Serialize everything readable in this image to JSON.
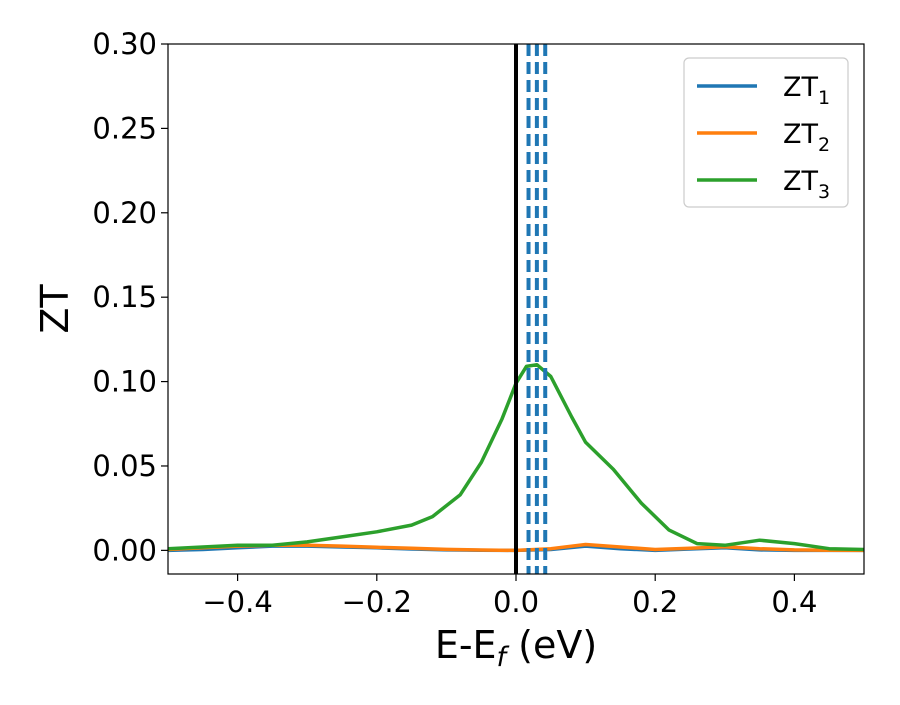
{
  "chart_data": {
    "type": "line",
    "xlabel": "E-E",
    "xlabel_sub": "f",
    "xlabel_unit": " (eV)",
    "ylabel": "ZT",
    "xlim": [
      -0.5,
      0.5
    ],
    "ylim": [
      -0.014,
      0.3
    ],
    "xticks": [
      -0.4,
      -0.2,
      0.0,
      0.2,
      0.4
    ],
    "xtick_labels": [
      "−0.4",
      "−0.2",
      "0.0",
      "0.2",
      "0.4"
    ],
    "yticks": [
      0.0,
      0.05,
      0.1,
      0.15,
      0.2,
      0.25,
      0.3
    ],
    "ytick_labels": [
      "0.00",
      "0.05",
      "0.10",
      "0.15",
      "0.20",
      "0.25",
      "0.30"
    ],
    "grid": false,
    "legend_position": "top-right",
    "series": [
      {
        "name": "ZT",
        "name_sub": "1",
        "color": "#1f77b4",
        "x": [
          -0.5,
          -0.45,
          -0.4,
          -0.35,
          -0.3,
          -0.25,
          -0.2,
          -0.15,
          -0.1,
          -0.05,
          0.0,
          0.05,
          0.1,
          0.15,
          0.2,
          0.25,
          0.3,
          0.35,
          0.4,
          0.45,
          0.5
        ],
        "y": [
          0.0,
          0.0005,
          0.0015,
          0.0025,
          0.0025,
          0.002,
          0.0015,
          0.0008,
          0.0003,
          0.0001,
          0.0,
          0.0005,
          0.0025,
          0.001,
          0.0,
          0.0008,
          0.0015,
          0.0003,
          0.0,
          0.0,
          0.0
        ]
      },
      {
        "name": "ZT",
        "name_sub": "2",
        "color": "#ff7f0e",
        "x": [
          -0.5,
          -0.45,
          -0.4,
          -0.35,
          -0.3,
          -0.25,
          -0.2,
          -0.15,
          -0.1,
          -0.05,
          0.0,
          0.05,
          0.1,
          0.15,
          0.2,
          0.25,
          0.3,
          0.35,
          0.4,
          0.45,
          0.5
        ],
        "y": [
          0.0005,
          0.0015,
          0.0025,
          0.003,
          0.003,
          0.0025,
          0.0018,
          0.0012,
          0.0006,
          0.0002,
          0.0,
          0.001,
          0.0035,
          0.002,
          0.0005,
          0.0012,
          0.0022,
          0.001,
          0.0003,
          0.0001,
          0.0
        ]
      },
      {
        "name": "ZT",
        "name_sub": "3",
        "color": "#2ca02c",
        "x": [
          -0.5,
          -0.45,
          -0.4,
          -0.35,
          -0.3,
          -0.25,
          -0.2,
          -0.15,
          -0.12,
          -0.08,
          -0.05,
          -0.02,
          0.0,
          0.015,
          0.03,
          0.05,
          0.08,
          0.1,
          0.14,
          0.18,
          0.22,
          0.26,
          0.3,
          0.35,
          0.4,
          0.45,
          0.5
        ],
        "y": [
          0.001,
          0.002,
          0.003,
          0.003,
          0.005,
          0.008,
          0.011,
          0.015,
          0.02,
          0.033,
          0.052,
          0.078,
          0.099,
          0.109,
          0.11,
          0.103,
          0.079,
          0.064,
          0.048,
          0.028,
          0.012,
          0.004,
          0.003,
          0.006,
          0.004,
          0.001,
          0.0005
        ]
      }
    ],
    "vlines": [
      {
        "x": 0.0,
        "color": "#000000",
        "style": "solid"
      },
      {
        "x": 0.018,
        "color": "#1f77b4",
        "style": "dashed"
      },
      {
        "x": 0.03,
        "color": "#1f77b4",
        "style": "dashed"
      },
      {
        "x": 0.042,
        "color": "#1f77b4",
        "style": "dashed"
      }
    ]
  }
}
